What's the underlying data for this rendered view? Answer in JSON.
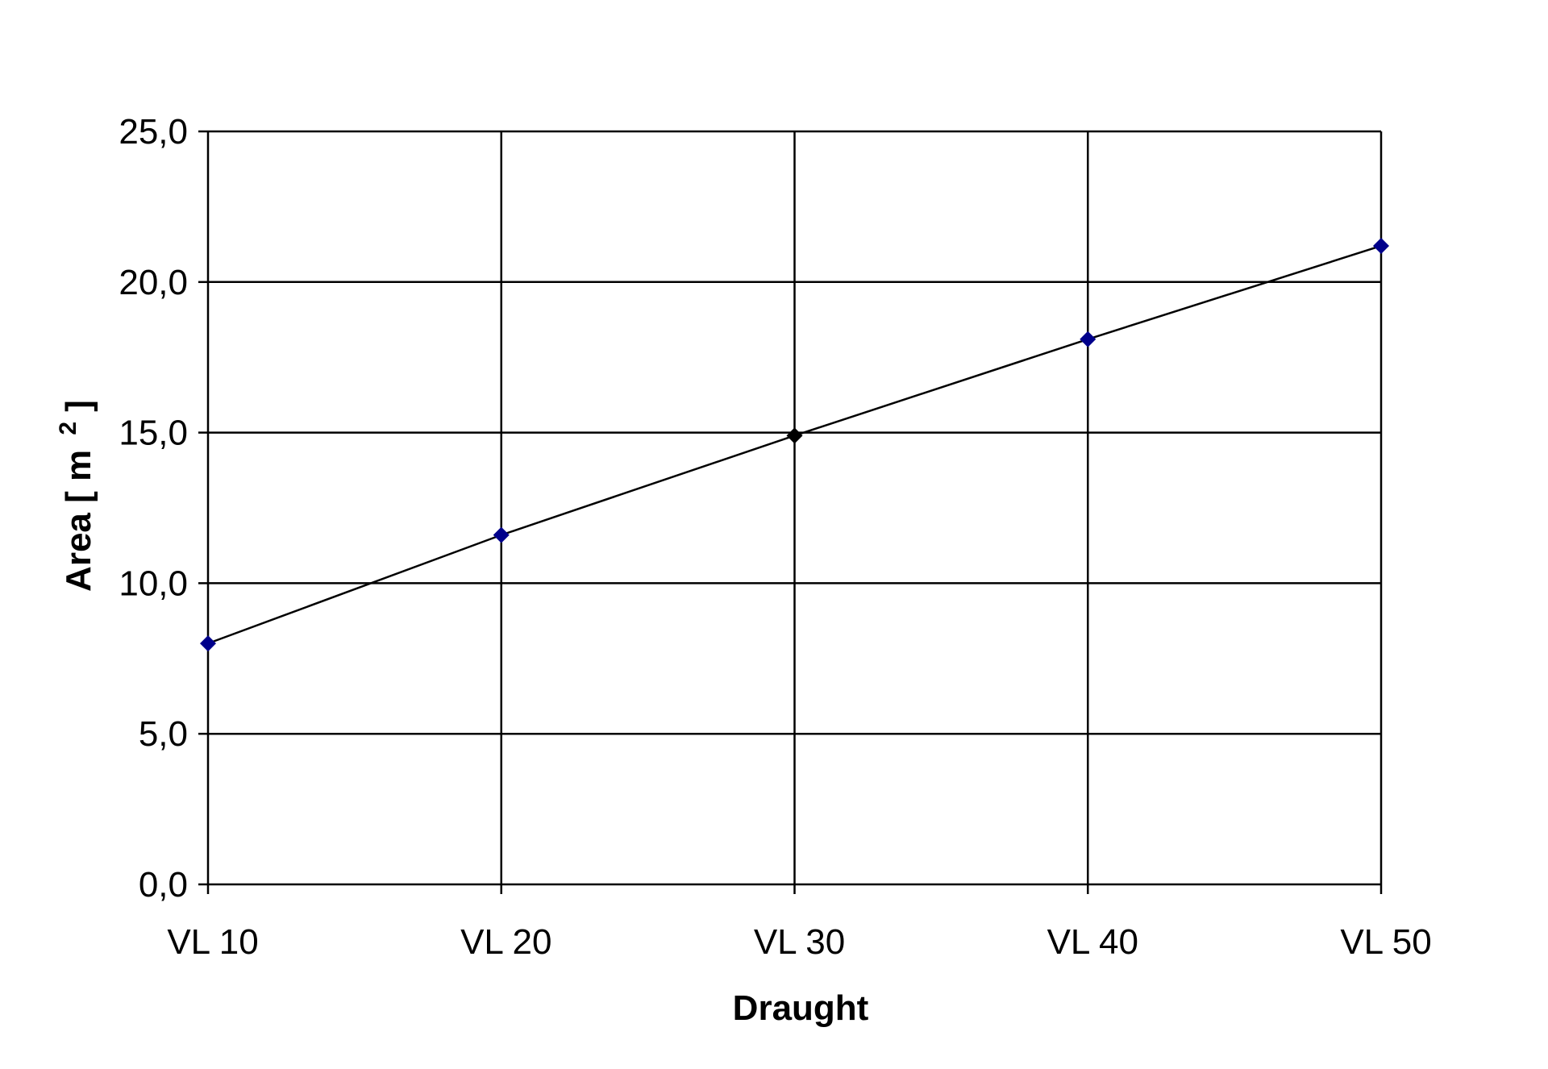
{
  "chart_data": {
    "type": "line",
    "xlabel": "Draught",
    "ylabel_main": "Area [ m",
    "ylabel_sup": "2",
    "ylabel_end": " ]",
    "categories": [
      "VL 10",
      "VL 20",
      "VL 30",
      "VL 40",
      "VL 50"
    ],
    "series": [
      {
        "values": [
          8.0,
          11.6,
          14.9,
          18.1,
          21.2
        ],
        "marker": "diamond",
        "marker_colors": [
          "#00008B",
          "#00008B",
          "#000000",
          "#00008B",
          "#00008B"
        ],
        "line_color": "#000000"
      }
    ],
    "ylim": [
      0,
      25
    ],
    "yticks": [
      0,
      5,
      10,
      15,
      20,
      25
    ],
    "ytick_labels": [
      "0,0",
      "5,0",
      "10,0",
      "15,0",
      "20,0",
      "25,0"
    ],
    "grid": true,
    "legend": "none"
  }
}
